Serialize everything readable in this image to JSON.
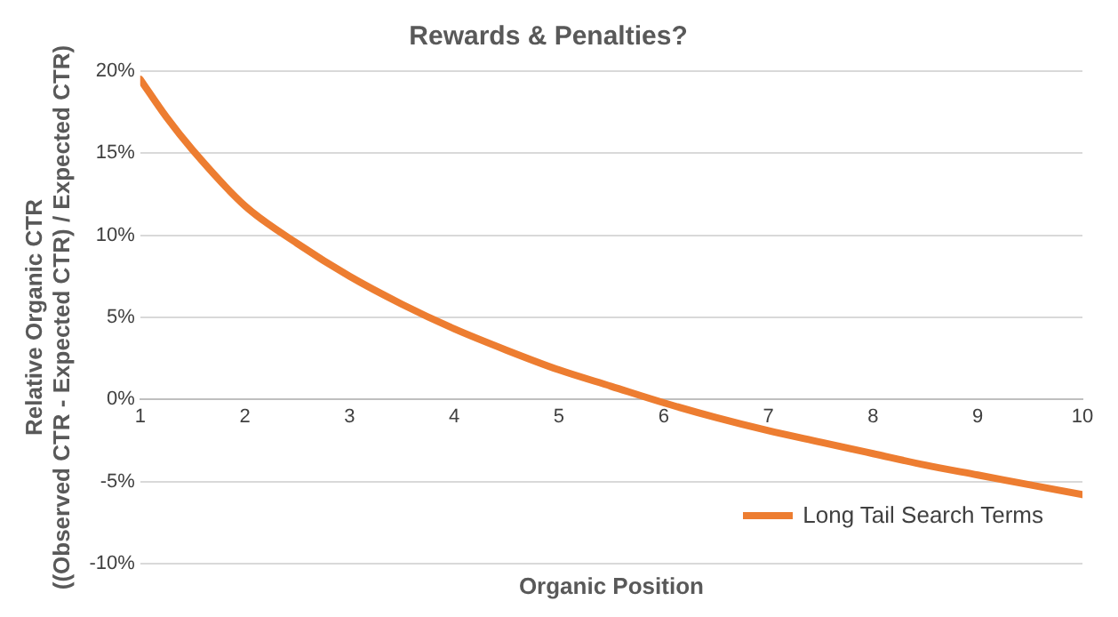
{
  "chart_data": {
    "type": "line",
    "title": "Rewards & Penalties?",
    "xlabel": "Organic Position",
    "ylabel": "Relative Organic CTR\n((Observed CTR - Expected CTR) / Expected CTR)",
    "x": [
      1,
      1.25,
      1.5,
      2,
      2.5,
      3,
      3.5,
      4,
      4.5,
      5,
      5.5,
      6,
      6.5,
      7,
      7.5,
      8,
      8.5,
      9,
      9.5,
      10
    ],
    "series": [
      {
        "name": "Long Tail Search Terms",
        "color": "#ed7d31",
        "values": [
          19.5,
          17.2,
          15.2,
          11.8,
          9.5,
          7.5,
          5.8,
          4.3,
          3,
          1.8,
          0.8,
          -0.2,
          -1.1,
          -1.9,
          -2.6,
          -3.3,
          -4,
          -4.6,
          -5.2,
          -5.8
        ]
      }
    ],
    "xlim": [
      1,
      10
    ],
    "xticks": [
      1,
      2,
      3,
      4,
      5,
      6,
      7,
      8,
      9,
      10
    ],
    "ylim": [
      -10,
      20
    ],
    "yticks": [
      {
        "value": -10,
        "label": "-10%"
      },
      {
        "value": -5,
        "label": "-5%"
      },
      {
        "value": 0,
        "label": "0%"
      },
      {
        "value": 5,
        "label": "5%"
      },
      {
        "value": 10,
        "label": "10%"
      },
      {
        "value": 15,
        "label": "15%"
      },
      {
        "value": 20,
        "label": "20%"
      }
    ],
    "grid": "y",
    "legend": "bottom right",
    "marker": "none",
    "line_style": "solid"
  }
}
